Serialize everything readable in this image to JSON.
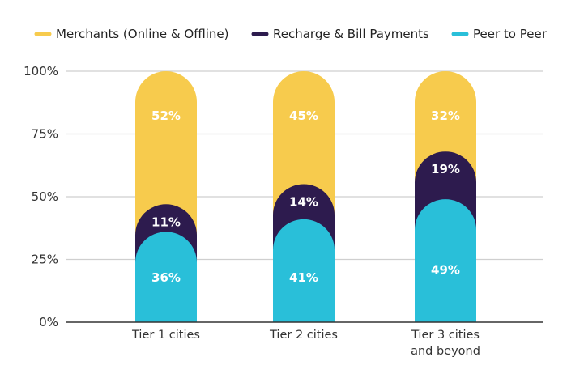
{
  "chart_data": {
    "type": "bar",
    "stacked": true,
    "categories": [
      [
        "Tier 1 cities"
      ],
      [
        "Tier 2 cities"
      ],
      [
        "Tier 3 cities",
        "and beyond"
      ]
    ],
    "series": [
      {
        "name": "Peer to Peer",
        "color": "#29BFD9",
        "values": [
          36,
          41,
          49
        ],
        "labels": [
          "36%",
          "41%",
          "49%"
        ]
      },
      {
        "name": "Recharge & Bill Payments",
        "color": "#2D1B4E",
        "values": [
          11,
          14,
          19
        ],
        "labels": [
          "11%",
          "14%",
          "19%"
        ]
      },
      {
        "name": "Merchants (Online & Offline)",
        "color": "#F7CB4D",
        "values": [
          52,
          45,
          32
        ],
        "labels": [
          "52%",
          "45%",
          "32%"
        ]
      }
    ],
    "legend_order": [
      "Merchants (Online & Offline)",
      "Recharge & Bill Payments",
      "Peer to Peer"
    ],
    "legend_position": "top",
    "yticks": [
      "0%",
      "25%",
      "50%",
      "75%",
      "100%"
    ],
    "ylim": [
      0,
      100
    ],
    "grid": true,
    "xlabel": "",
    "ylabel": ""
  }
}
